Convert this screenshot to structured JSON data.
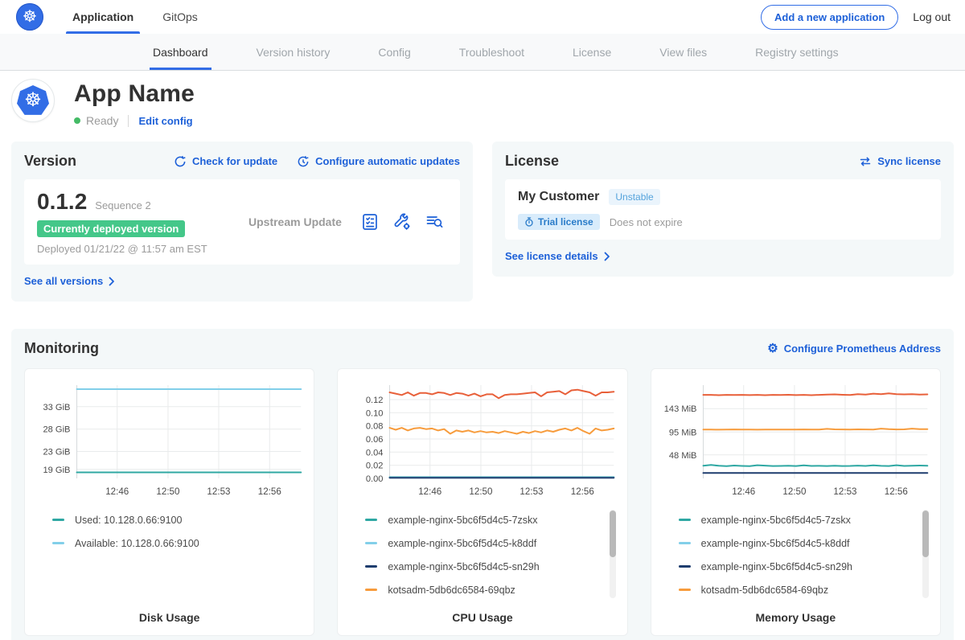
{
  "colors": {
    "accent_blue": "#326de6",
    "link_blue": "#1d60d8",
    "deployed_badge_green": "#44c789",
    "status_green": "#44bb66",
    "teal": "#2fa8a3",
    "light_blue": "#82cfe9",
    "navy": "#1e3d6e",
    "orange": "#f79c3d",
    "red_orange": "#e8603a"
  },
  "navbar": {
    "brand_icon": "kubernetes-logo",
    "tabs": [
      {
        "label": "Application",
        "active": true
      },
      {
        "label": "GitOps",
        "active": false
      }
    ],
    "add_app_button": "Add a new application",
    "logout": "Log out"
  },
  "subnav": {
    "tabs": [
      {
        "label": "Dashboard",
        "active": true
      },
      {
        "label": "Version history",
        "active": false
      },
      {
        "label": "Config",
        "active": false
      },
      {
        "label": "Troubleshoot",
        "active": false
      },
      {
        "label": "License",
        "active": false
      },
      {
        "label": "View files",
        "active": false
      },
      {
        "label": "Registry settings",
        "active": false
      }
    ]
  },
  "app_header": {
    "name": "App Name",
    "status": "Ready",
    "edit_config": "Edit config"
  },
  "version_card": {
    "title": "Version",
    "check_for_update": "Check for update",
    "configure_auto_updates": "Configure automatic updates",
    "version_number": "0.1.2",
    "sequence": "Sequence 2",
    "deployed_badge": "Currently deployed version",
    "deployed_at": "Deployed 01/21/22 @ 11:57 am EST",
    "upstream_update": "Upstream Update",
    "see_all_versions": "See all versions",
    "action_icons": [
      "release-notes-icon",
      "config-wrench-icon",
      "diff-log-icon"
    ]
  },
  "license_card": {
    "title": "License",
    "sync_license": "Sync license",
    "customer_name": "My Customer",
    "channel_badge": "Unstable",
    "license_type_badge": "Trial license",
    "expiry": "Does not expire",
    "see_license_details": "See license details"
  },
  "monitoring": {
    "title": "Monitoring",
    "configure_prometheus": "Configure Prometheus Address",
    "charts": [
      {
        "type": "line",
        "title": "Disk Usage",
        "ylim": [
          17,
          37.8
        ],
        "y_ticks": [
          {
            "label": "33 GiB",
            "value": 33
          },
          {
            "label": "28 GiB",
            "value": 28
          },
          {
            "label": "23 GiB",
            "value": 23
          },
          {
            "label": "19 GiB",
            "value": 19
          }
        ],
        "x_ticks": [
          {
            "label": "12:46",
            "pos": 0.18
          },
          {
            "label": "12:50",
            "pos": 0.407
          },
          {
            "label": "12:53",
            "pos": 0.633
          },
          {
            "label": "12:56",
            "pos": 0.86
          }
        ],
        "series": [
          {
            "color": "#82cfe9",
            "values": [
              36.9,
              36.9,
              36.9,
              36.9,
              36.9,
              36.9,
              36.9,
              36.9
            ]
          },
          {
            "color": "#2fa8a3",
            "values": [
              18.35,
              18.35,
              18.35,
              18.35,
              18.35,
              18.35,
              18.35,
              18.35
            ]
          }
        ],
        "legend": [
          {
            "label": "Used: 10.128.0.66:9100",
            "color": "#2fa8a3"
          },
          {
            "label": "Available: 10.128.0.66:9100",
            "color": "#82cfe9"
          }
        ],
        "scrollbar": false
      },
      {
        "type": "line",
        "title": "CPU Usage",
        "ylim": [
          0,
          0.142
        ],
        "y_ticks": [
          {
            "label": "0.12",
            "value": 0.12
          },
          {
            "label": "0.10",
            "value": 0.1
          },
          {
            "label": "0.08",
            "value": 0.08
          },
          {
            "label": "0.06",
            "value": 0.06
          },
          {
            "label": "0.04",
            "value": 0.04
          },
          {
            "label": "0.02",
            "value": 0.02
          },
          {
            "label": "0.00",
            "value": 0.0
          }
        ],
        "x_ticks": [
          {
            "label": "12:46",
            "pos": 0.18
          },
          {
            "label": "12:50",
            "pos": 0.407
          },
          {
            "label": "12:53",
            "pos": 0.633
          },
          {
            "label": "12:56",
            "pos": 0.86
          }
        ],
        "series": [
          {
            "color": "#2fa8a3",
            "values": [
              0.002,
              0.002,
              0.002,
              0.002,
              0.002,
              0.002,
              0.002,
              0.002
            ]
          },
          {
            "color": "#82cfe9",
            "values": [
              0.0015,
              0.0015,
              0.0015,
              0.0015,
              0.0015,
              0.0015,
              0.0015,
              0.0015
            ]
          },
          {
            "color": "#1e3d6e",
            "values": [
              0.001,
              0.001,
              0.001,
              0.001,
              0.001,
              0.001,
              0.001,
              0.001
            ]
          },
          {
            "color": "#f79c3d",
            "values": [
              0.077,
              0.074,
              0.077,
              0.073,
              0.076,
              0.077,
              0.075,
              0.076,
              0.073,
              0.075,
              0.068,
              0.073,
              0.071,
              0.073,
              0.07,
              0.072,
              0.07,
              0.071,
              0.069,
              0.072,
              0.07,
              0.068,
              0.071,
              0.069,
              0.072,
              0.07,
              0.073,
              0.071,
              0.074,
              0.076,
              0.073,
              0.077,
              0.072,
              0.068,
              0.076,
              0.073,
              0.074,
              0.076
            ]
          },
          {
            "color": "#e8603a",
            "values": [
              0.131,
              0.129,
              0.127,
              0.131,
              0.126,
              0.13,
              0.13,
              0.128,
              0.131,
              0.13,
              0.127,
              0.13,
              0.129,
              0.126,
              0.129,
              0.125,
              0.128,
              0.128,
              0.122,
              0.127,
              0.128,
              0.128,
              0.129,
              0.13,
              0.131,
              0.125,
              0.131,
              0.132,
              0.133,
              0.128,
              0.134,
              0.135,
              0.133,
              0.131,
              0.126,
              0.131,
              0.131,
              0.132
            ]
          }
        ],
        "legend": [
          {
            "label": "example-nginx-5bc6f5d4c5-7zskx",
            "color": "#2fa8a3"
          },
          {
            "label": "example-nginx-5bc6f5d4c5-k8ddf",
            "color": "#82cfe9"
          },
          {
            "label": "example-nginx-5bc6f5d4c5-sn29h",
            "color": "#1e3d6e"
          },
          {
            "label": "kotsadm-5db6dc6584-69qbz",
            "color": "#f79c3d"
          }
        ],
        "scrollbar": true
      },
      {
        "type": "line",
        "title": "Memory Usage",
        "ylim": [
          0,
          191
        ],
        "y_ticks": [
          {
            "label": "143 MiB",
            "value": 143
          },
          {
            "label": "95 MiB",
            "value": 95
          },
          {
            "label": "48 MiB",
            "value": 48
          }
        ],
        "x_ticks": [
          {
            "label": "12:46",
            "pos": 0.18
          },
          {
            "label": "12:50",
            "pos": 0.407
          },
          {
            "label": "12:53",
            "pos": 0.633
          },
          {
            "label": "12:56",
            "pos": 0.86
          }
        ],
        "series": [
          {
            "color": "#1e3d6e",
            "values": [
              11,
              11,
              11,
              11,
              11,
              11,
              11,
              11
            ]
          },
          {
            "color": "#2fa8a3",
            "values": [
              26,
              27.5,
              25.8,
              25.2,
              26.4,
              25.6,
              25.1,
              27,
              26.2,
              25.3,
              25.6,
              25.8,
              25.3,
              26.8,
              25.5,
              25.7,
              25.4,
              26,
              25.3,
              25.6,
              26.1,
              25.5,
              26.6,
              25.7,
              25.4,
              27,
              25.5,
              25.8,
              26.3,
              25.8
            ]
          },
          {
            "color": "#f79c3d",
            "values": [
              100,
              100,
              99.8,
              100,
              100.2,
              100,
              100,
              99.8,
              100,
              100.1,
              100,
              100,
              100,
              100.2,
              100,
              100,
              101.5,
              100.5,
              100.2,
              100,
              100.4,
              100.2,
              100,
              102,
              100.8,
              100.3,
              100.5,
              102,
              100.8,
              100.9
            ]
          },
          {
            "color": "#e8603a",
            "values": [
              171,
              171,
              170.5,
              171,
              170.8,
              171,
              170.6,
              171,
              170.4,
              171,
              170.8,
              171.2,
              170.6,
              171,
              170.5,
              171,
              171.5,
              172,
              171.2,
              170.8,
              172.5,
              171.5,
              173.5,
              172.5,
              174,
              172.5,
              172,
              172.4,
              171.8,
              172
            ]
          }
        ],
        "legend": [
          {
            "label": "example-nginx-5bc6f5d4c5-7zskx",
            "color": "#2fa8a3"
          },
          {
            "label": "example-nginx-5bc6f5d4c5-k8ddf",
            "color": "#82cfe9"
          },
          {
            "label": "example-nginx-5bc6f5d4c5-sn29h",
            "color": "#1e3d6e"
          },
          {
            "label": "kotsadm-5db6dc6584-69qbz",
            "color": "#f79c3d"
          }
        ],
        "scrollbar": true
      }
    ]
  }
}
